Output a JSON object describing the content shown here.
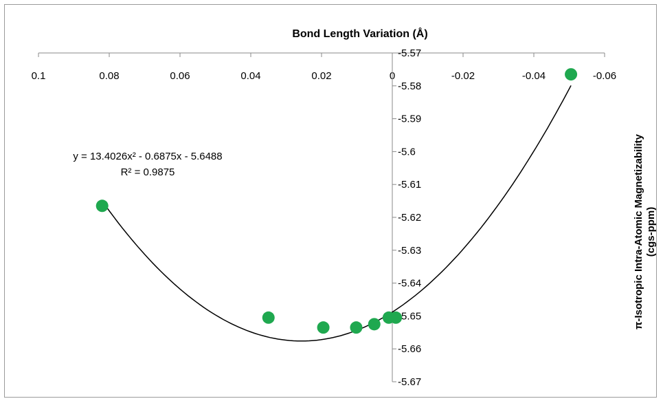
{
  "chart_data": {
    "type": "scatter",
    "title": "Bond Length Variation (Å)",
    "xlabel": "Bond Length Variation (Å)",
    "ylabel_line1": "π-Isotropic Intra-Atomic Magnetizability",
    "ylabel_line2": "(cgs-ppm)",
    "x_ticks": [
      0.1,
      0.08,
      0.06,
      0.04,
      0.02,
      0,
      -0.02,
      -0.04,
      -0.06
    ],
    "x_tick_labels": [
      "0.1",
      "0.08",
      "0.06",
      "0.04",
      "0.02",
      "0",
      "-0.02",
      "-0.04",
      "-0.06"
    ],
    "y_ticks": [
      -5.57,
      -5.58,
      -5.59,
      -5.6,
      -5.61,
      -5.62,
      -5.63,
      -5.64,
      -5.65,
      -5.66,
      -5.67
    ],
    "y_tick_labels": [
      "-5.57",
      "-5.58",
      "-5.59",
      "-5.6",
      "-5.61",
      "-5.62",
      "-5.63",
      "-5.64",
      "-5.65",
      "-5.66",
      "-5.67"
    ],
    "xlim": [
      0.1,
      -0.06
    ],
    "ylim": [
      -5.67,
      -5.57
    ],
    "x_reversed": true,
    "y_reversed": true,
    "series": [
      {
        "points": [
          {
            "x": 0.082,
            "y": -5.6165
          },
          {
            "x": 0.035,
            "y": -5.6505
          },
          {
            "x": 0.0195,
            "y": -5.6535
          },
          {
            "x": 0.0102,
            "y": -5.6535
          },
          {
            "x": 0.0051,
            "y": -5.6525
          },
          {
            "x": 0.001,
            "y": -5.6505
          },
          {
            "x": -0.001,
            "y": -5.6505
          },
          {
            "x": -0.0505,
            "y": -5.5765
          }
        ],
        "color": "#1fa84f"
      }
    ],
    "trendline": {
      "type": "polynomial",
      "order": 2,
      "a": 13.4026,
      "b": -0.6875,
      "c": -5.6488,
      "x_range": [
        0.082,
        -0.0505
      ],
      "color": "#000000"
    },
    "annotation": {
      "equation": "y = 13.4026x² - 0.6875x - 5.6488",
      "r2": "R² = 0.9875"
    },
    "grid": false,
    "legend": "none"
  }
}
